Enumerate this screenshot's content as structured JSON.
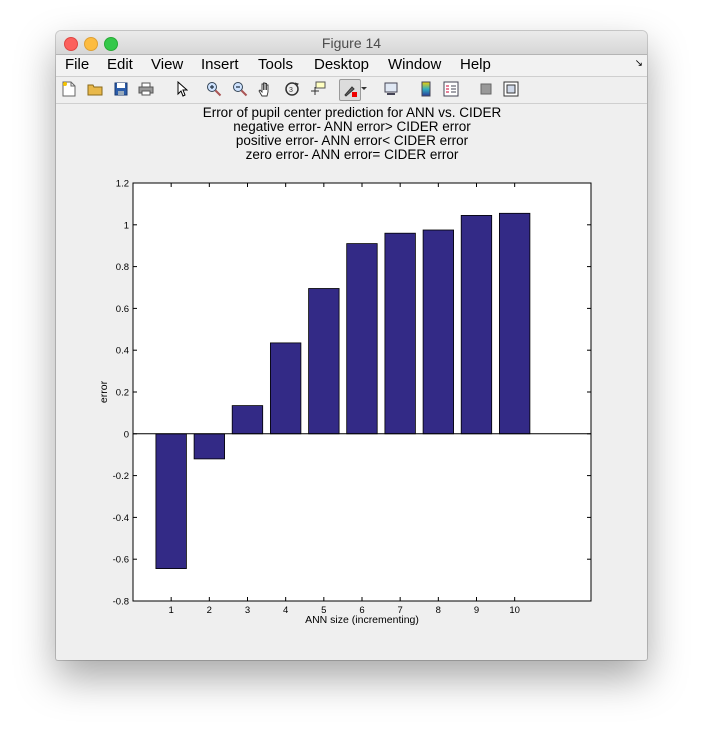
{
  "window": {
    "title": "Figure 14"
  },
  "menu": [
    "File",
    "Edit",
    "View",
    "Insert",
    "Tools",
    "Desktop",
    "Window",
    "Help"
  ],
  "toolbar_icons": [
    "new-file-icon",
    "open-folder-icon",
    "save-icon",
    "print-icon",
    "pointer-icon",
    "zoom-in-icon",
    "zoom-out-icon",
    "pan-hand-icon",
    "rotate-3d-icon",
    "data-cursor-icon",
    "brush-icon",
    "brush-dropdown-icon",
    "link-plot-icon",
    "colorbar-icon",
    "legend-icon",
    "hide-plot-tools-icon",
    "show-plot-tools-icon"
  ],
  "chart_data": {
    "type": "bar",
    "title": [
      "Error of pupil center prediction for ANN vs. CIDER",
      "negative error- ANN error> CIDER error",
      "positive error- ANN error< CIDER error",
      "zero error- ANN error= CIDER error"
    ],
    "xlabel": "ANN size (incrementing)",
    "ylabel": "error",
    "categories": [
      "1",
      "2",
      "3",
      "4",
      "5",
      "6",
      "7",
      "8",
      "9",
      "10"
    ],
    "values": [
      -0.645,
      -0.12,
      0.135,
      0.435,
      0.695,
      0.91,
      0.96,
      0.975,
      1.045,
      1.055
    ],
    "xlim": [
      0,
      12
    ],
    "ylim": [
      -0.8,
      1.2
    ],
    "yticks": [
      "-0.8",
      "-0.6",
      "-0.4",
      "-0.2",
      "0",
      "0.2",
      "0.4",
      "0.6",
      "0.8",
      "1",
      "1.2"
    ],
    "bar_color": "#332a86",
    "grid": false
  }
}
